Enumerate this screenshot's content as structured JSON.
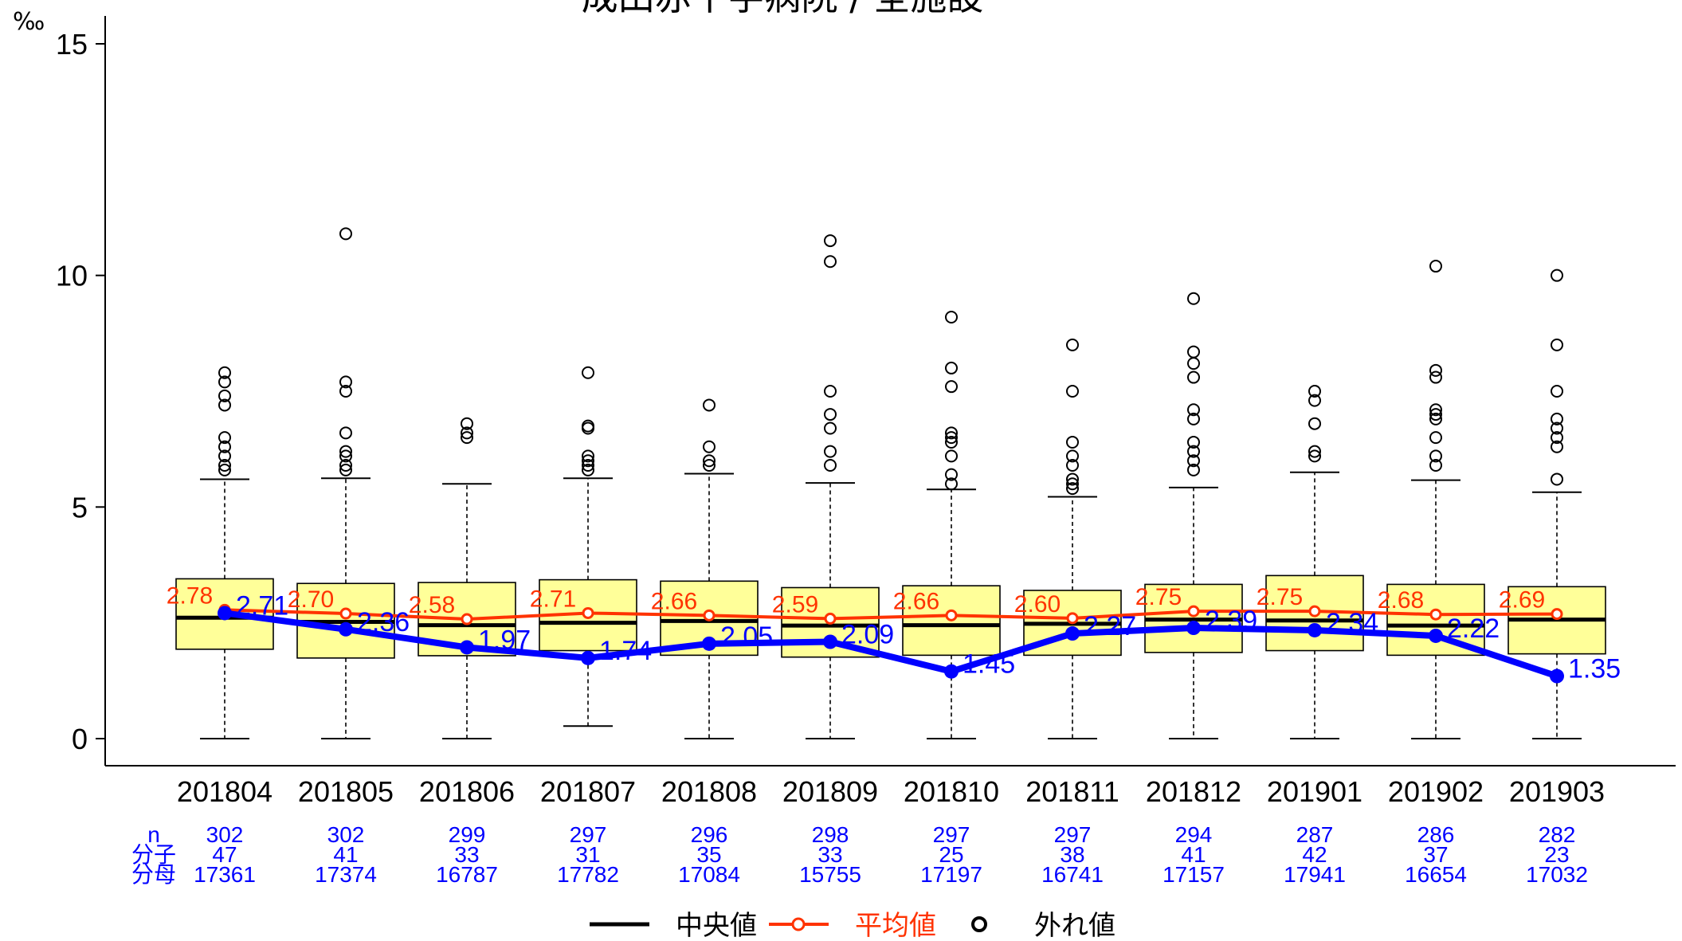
{
  "chart_data": {
    "type": "box",
    "title": "成田赤十字病院 / 全施設",
    "unit_label": "‰",
    "ylim": [
      0,
      15.5
    ],
    "yticks": [
      0,
      5,
      10,
      15
    ],
    "categories": [
      "201804",
      "201805",
      "201806",
      "201807",
      "201808",
      "201809",
      "201810",
      "201811",
      "201812",
      "201901",
      "201902",
      "201903"
    ],
    "boxes": [
      {
        "q1": 1.93,
        "median": 2.61,
        "q3": 3.45,
        "whisker_low": 0,
        "whisker_high": 5.6,
        "outliers": [
          5.8,
          5.9,
          6.1,
          6.3,
          6.5,
          7.2,
          7.4,
          7.7,
          7.9
        ]
      },
      {
        "q1": 1.74,
        "median": 2.52,
        "q3": 3.35,
        "whisker_low": 0,
        "whisker_high": 5.62,
        "outliers": [
          5.8,
          5.9,
          6.1,
          6.2,
          6.6,
          7.5,
          7.7,
          10.9
        ]
      },
      {
        "q1": 1.79,
        "median": 2.45,
        "q3": 3.37,
        "whisker_low": 0,
        "whisker_high": 5.5,
        "outliers": [
          6.5,
          6.6,
          6.8
        ]
      },
      {
        "q1": 1.9,
        "median": 2.5,
        "q3": 3.43,
        "whisker_low": 0.27,
        "whisker_high": 5.62,
        "outliers": [
          5.8,
          5.9,
          6.0,
          6.1,
          6.7,
          6.75,
          7.9
        ]
      },
      {
        "q1": 1.8,
        "median": 2.54,
        "q3": 3.4,
        "whisker_low": 0,
        "whisker_high": 5.72,
        "outliers": [
          5.9,
          6.0,
          6.3,
          7.2
        ]
      },
      {
        "q1": 1.76,
        "median": 2.44,
        "q3": 3.26,
        "whisker_low": 0,
        "whisker_high": 5.52,
        "outliers": [
          5.9,
          6.2,
          6.7,
          7.0,
          7.5,
          10.3,
          10.75
        ]
      },
      {
        "q1": 1.8,
        "median": 2.45,
        "q3": 3.3,
        "whisker_low": 0,
        "whisker_high": 5.38,
        "outliers": [
          5.5,
          5.7,
          6.1,
          6.4,
          6.5,
          6.6,
          7.6,
          8.0,
          9.1
        ]
      },
      {
        "q1": 1.8,
        "median": 2.48,
        "q3": 3.2,
        "whisker_low": 0,
        "whisker_high": 5.22,
        "outliers": [
          5.4,
          5.5,
          5.6,
          5.9,
          6.1,
          6.4,
          7.5,
          8.5
        ]
      },
      {
        "q1": 1.86,
        "median": 2.57,
        "q3": 3.33,
        "whisker_low": 0,
        "whisker_high": 5.42,
        "outliers": [
          5.8,
          6.0,
          6.2,
          6.4,
          6.9,
          7.1,
          7.8,
          8.1,
          8.35,
          9.5
        ]
      },
      {
        "q1": 1.9,
        "median": 2.55,
        "q3": 3.52,
        "whisker_low": 0,
        "whisker_high": 5.75,
        "outliers": [
          6.1,
          6.2,
          6.8,
          7.3,
          7.5
        ]
      },
      {
        "q1": 1.8,
        "median": 2.44,
        "q3": 3.33,
        "whisker_low": 0,
        "whisker_high": 5.58,
        "outliers": [
          5.9,
          6.1,
          6.5,
          6.9,
          7.0,
          7.1,
          7.8,
          7.95,
          10.2
        ]
      },
      {
        "q1": 1.83,
        "median": 2.57,
        "q3": 3.28,
        "whisker_low": 0,
        "whisker_high": 5.32,
        "outliers": [
          5.6,
          6.3,
          6.5,
          6.7,
          6.9,
          7.5,
          8.5,
          10.0
        ]
      }
    ],
    "series": [
      {
        "name": "平均値",
        "color": "#ff3300",
        "values": [
          2.78,
          2.7,
          2.58,
          2.71,
          2.66,
          2.59,
          2.66,
          2.6,
          2.75,
          2.75,
          2.68,
          2.69
        ]
      },
      {
        "name": "成田赤十字病院",
        "color": "#0000ff",
        "values": [
          2.71,
          2.36,
          1.97,
          1.74,
          2.05,
          2.09,
          1.45,
          2.27,
          2.39,
          2.34,
          2.22,
          1.35
        ]
      }
    ],
    "value_labels": {
      "mean": [
        "2.78",
        "2.70",
        "2.58",
        "2.71",
        "2.66",
        "2.59",
        "2.66",
        "2.60",
        "2.75",
        "2.75",
        "2.68",
        "2.69"
      ],
      "hospital": [
        "2.71",
        "2.36",
        "1.97",
        "1.74",
        "2.05",
        "2.09",
        "1.45",
        "2.27",
        "2.39",
        "2.34",
        "2.22",
        "1.35"
      ]
    },
    "counts_table": {
      "row_labels": [
        "n",
        "分子",
        "分母"
      ],
      "n": [
        "302",
        "302",
        "299",
        "297",
        "296",
        "298",
        "297",
        "297",
        "294",
        "287",
        "286",
        "282"
      ],
      "numerator": [
        "47",
        "41",
        "33",
        "31",
        "35",
        "33",
        "25",
        "38",
        "41",
        "42",
        "37",
        "23"
      ],
      "denominator": [
        "17361",
        "17374",
        "16787",
        "17782",
        "17084",
        "15755",
        "17197",
        "16741",
        "17157",
        "17941",
        "16654",
        "17032"
      ]
    },
    "legend": {
      "placement": "bottom",
      "items": [
        {
          "label": "中央値",
          "color": "#000000"
        },
        {
          "label": "平均値",
          "color": "#ff3300"
        },
        {
          "label": "外れ値",
          "color": "#000000"
        }
      ]
    },
    "colors": {
      "box_fill": "#ffff99",
      "axis": "#000000",
      "count_text": "#0000ff"
    }
  }
}
